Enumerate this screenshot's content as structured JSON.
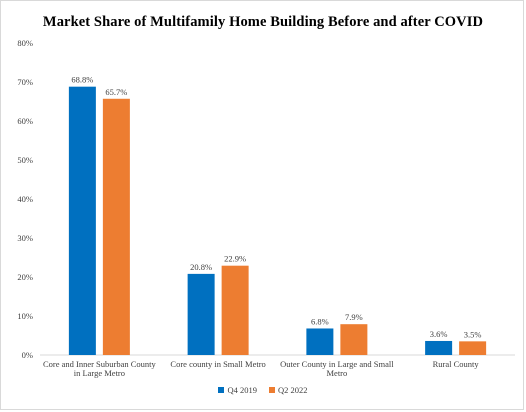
{
  "chart_data": {
    "type": "bar",
    "title": "Market Share of Multifamily Home  Building Before and after COVID",
    "categories": [
      [
        "Core and Inner Suburban County",
        "in Large Metro"
      ],
      [
        "Core county in Small Metro"
      ],
      [
        "Outer County in Large and Small",
        "Metro"
      ],
      [
        "Rural County"
      ]
    ],
    "series": [
      {
        "name": "Q4 2019",
        "color": "#0070c0",
        "values": [
          68.8,
          20.8,
          6.8,
          3.6
        ],
        "labels": [
          "68.8%",
          "20.8%",
          "6.8%",
          "3.6%"
        ]
      },
      {
        "name": "Q2 2022",
        "color": "#ed7d31",
        "values": [
          65.7,
          22.9,
          7.9,
          3.5
        ],
        "labels": [
          "65.7%",
          "22.9%",
          "7.9%",
          "3.5%"
        ]
      }
    ],
    "ylim": [
      0,
      80
    ],
    "yticks": [
      "0%",
      "10%",
      "20%",
      "30%",
      "40%",
      "50%",
      "60%",
      "70%",
      "80%"
    ],
    "grid": false,
    "legend_position": "bottom"
  }
}
